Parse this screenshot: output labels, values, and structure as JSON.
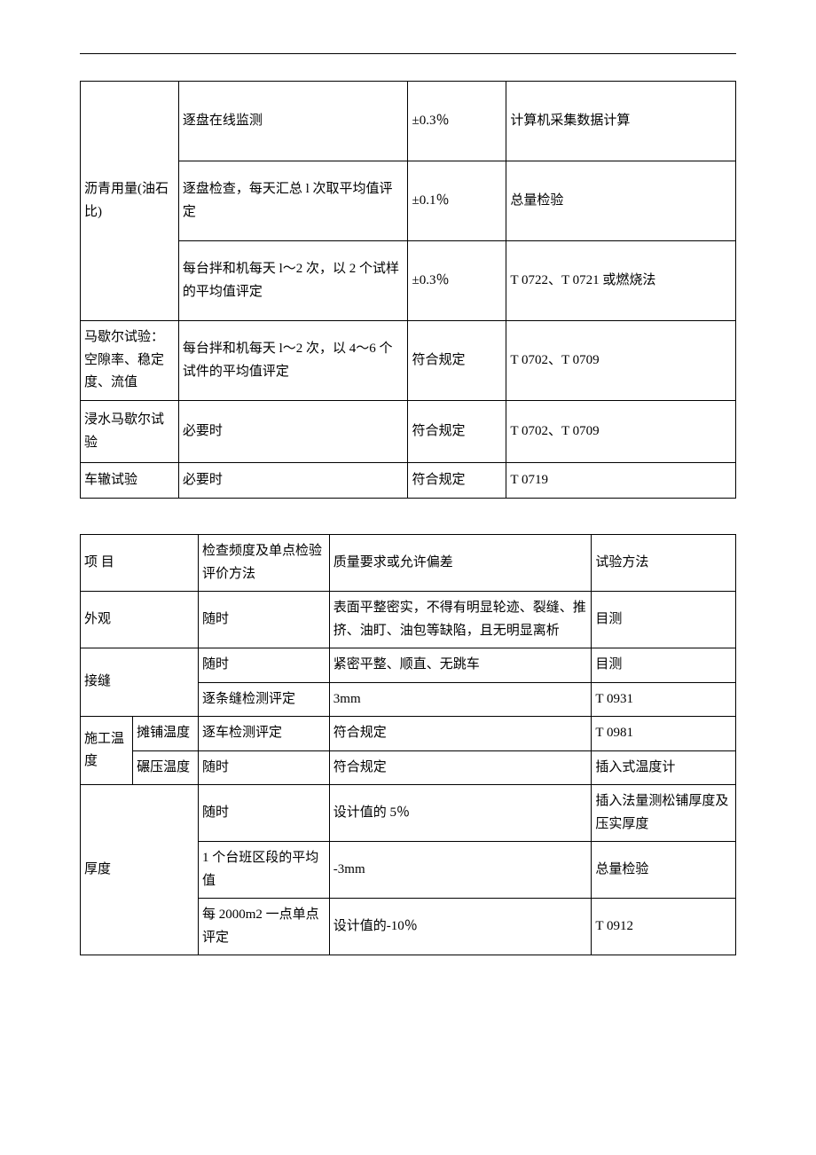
{
  "table1": {
    "col_widths": [
      "15%",
      "35%",
      "15%",
      "35%"
    ],
    "rows": [
      {
        "c": [
          {
            "t": "沥青用量(油石比)",
            "rs": 3
          },
          {
            "t": "逐盘在线监测"
          },
          {
            "t": "±0.3％"
          },
          {
            "t": "计算机采集数据计算"
          }
        ],
        "h": "tall"
      },
      {
        "c": [
          {
            "t": "逐盘检查，每天汇总 l 次取平均值评定"
          },
          {
            "t": "±0.1％"
          },
          {
            "t": "总量检验"
          }
        ],
        "h": "tall"
      },
      {
        "c": [
          {
            "t": "每台拌和机每天 l～2 次，以 2 个试样的平均值评定"
          },
          {
            "t": "±0.3％"
          },
          {
            "t": "T 0722、T 0721 或燃烧法"
          }
        ],
        "h": "tall"
      },
      {
        "c": [
          {
            "t": "马歇尔试验：空隙率、稳定度、流值"
          },
          {
            "t": "每台拌和机每天 l～2 次，以 4～6 个试件的平均值评定"
          },
          {
            "t": "符合规定"
          },
          {
            "t": "T 0702、T 0709"
          }
        ],
        "h": "tall"
      },
      {
        "c": [
          {
            "t": "浸水马歇尔试验"
          },
          {
            "t": "必要时"
          },
          {
            "t": "符合规定"
          },
          {
            "t": "T 0702、T 0709"
          }
        ],
        "h": "med"
      },
      {
        "c": [
          {
            "t": "车辙试验"
          },
          {
            "t": "必要时"
          },
          {
            "t": "符合规定"
          },
          {
            "t": "T 0719"
          }
        ],
        "h": "short"
      }
    ]
  },
  "table2": {
    "col_widths": [
      "8%",
      "10%",
      "20%",
      "40%",
      "22%"
    ],
    "rows": [
      {
        "c": [
          {
            "t": "项 目",
            "cs": 2
          },
          {
            "t": "检查频度及单点检验评价方法"
          },
          {
            "t": "质量要求或允许偏差"
          },
          {
            "t": "试验方法"
          }
        ]
      },
      {
        "c": [
          {
            "t": "外观",
            "cs": 2
          },
          {
            "t": "随时"
          },
          {
            "t": "表面平整密实，不得有明显轮迹、裂缝、推挤、油盯、油包等缺陷，且无明显离析"
          },
          {
            "t": "目测"
          }
        ]
      },
      {
        "c": [
          {
            "t": "接缝",
            "cs": 2,
            "rs": 2
          },
          {
            "t": "随时"
          },
          {
            "t": "紧密平整、顺直、无跳车"
          },
          {
            "t": "目测"
          }
        ]
      },
      {
        "c": [
          {
            "t": "逐条缝检测评定"
          },
          {
            "t": "3mm"
          },
          {
            "t": "T 0931"
          }
        ]
      },
      {
        "c": [
          {
            "t": "施工温度",
            "rs": 2
          },
          {
            "t": "摊铺温度"
          },
          {
            "t": "逐车检测评定"
          },
          {
            "t": "符合规定"
          },
          {
            "t": "T 0981"
          }
        ]
      },
      {
        "c": [
          {
            "t": "碾压温度"
          },
          {
            "t": "随时"
          },
          {
            "t": "符合规定"
          },
          {
            "t": "插入式温度计"
          }
        ]
      },
      {
        "c": [
          {
            "t": "厚度",
            "cs": 2,
            "rs": 3
          },
          {
            "t": "随时"
          },
          {
            "t": "设计值的 5％"
          },
          {
            "t": "插入法量测松铺厚度及压实厚度"
          }
        ]
      },
      {
        "c": [
          {
            "t": "1 个台班区段的平均值"
          },
          {
            "t": "-3mm"
          },
          {
            "t": "总量检验"
          }
        ]
      },
      {
        "c": [
          {
            "t": "每 2000m2 一点单点评定"
          },
          {
            "t": "设计值的-10％"
          },
          {
            "t": "T 0912"
          }
        ]
      }
    ]
  }
}
